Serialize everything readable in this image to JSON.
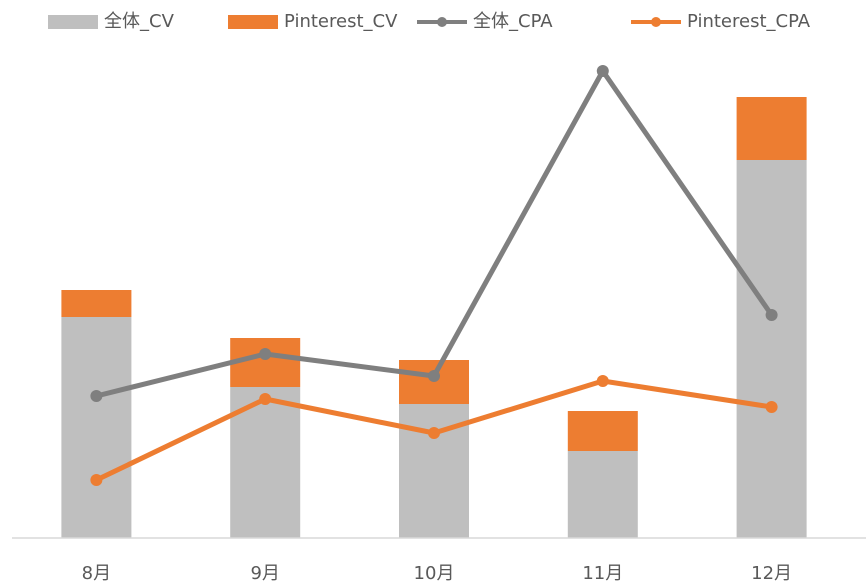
{
  "chart_data": {
    "type": "bar",
    "stacked": true,
    "categories": [
      "8月",
      "9月",
      "10月",
      "11月",
      "12月"
    ],
    "series": [
      {
        "name": "全体_CV",
        "type": "bar",
        "color": "#bfbfbf",
        "values": [
          221,
          151,
          134,
          87,
          378
        ]
      },
      {
        "name": "Pinterest_CV",
        "type": "bar",
        "color": "#ed7d31",
        "values": [
          27,
          49,
          44,
          40,
          63
        ]
      },
      {
        "name": "全体_CPA",
        "type": "line",
        "color": "#7f7f7f",
        "values": [
          142,
          184,
          162,
          467,
          223
        ]
      },
      {
        "name": "Pinterest_CPA",
        "type": "line",
        "color": "#ed7d31",
        "values": [
          58,
          139,
          105,
          157,
          131
        ]
      }
    ],
    "ylim": [
      0,
      480
    ],
    "legend": "top"
  }
}
